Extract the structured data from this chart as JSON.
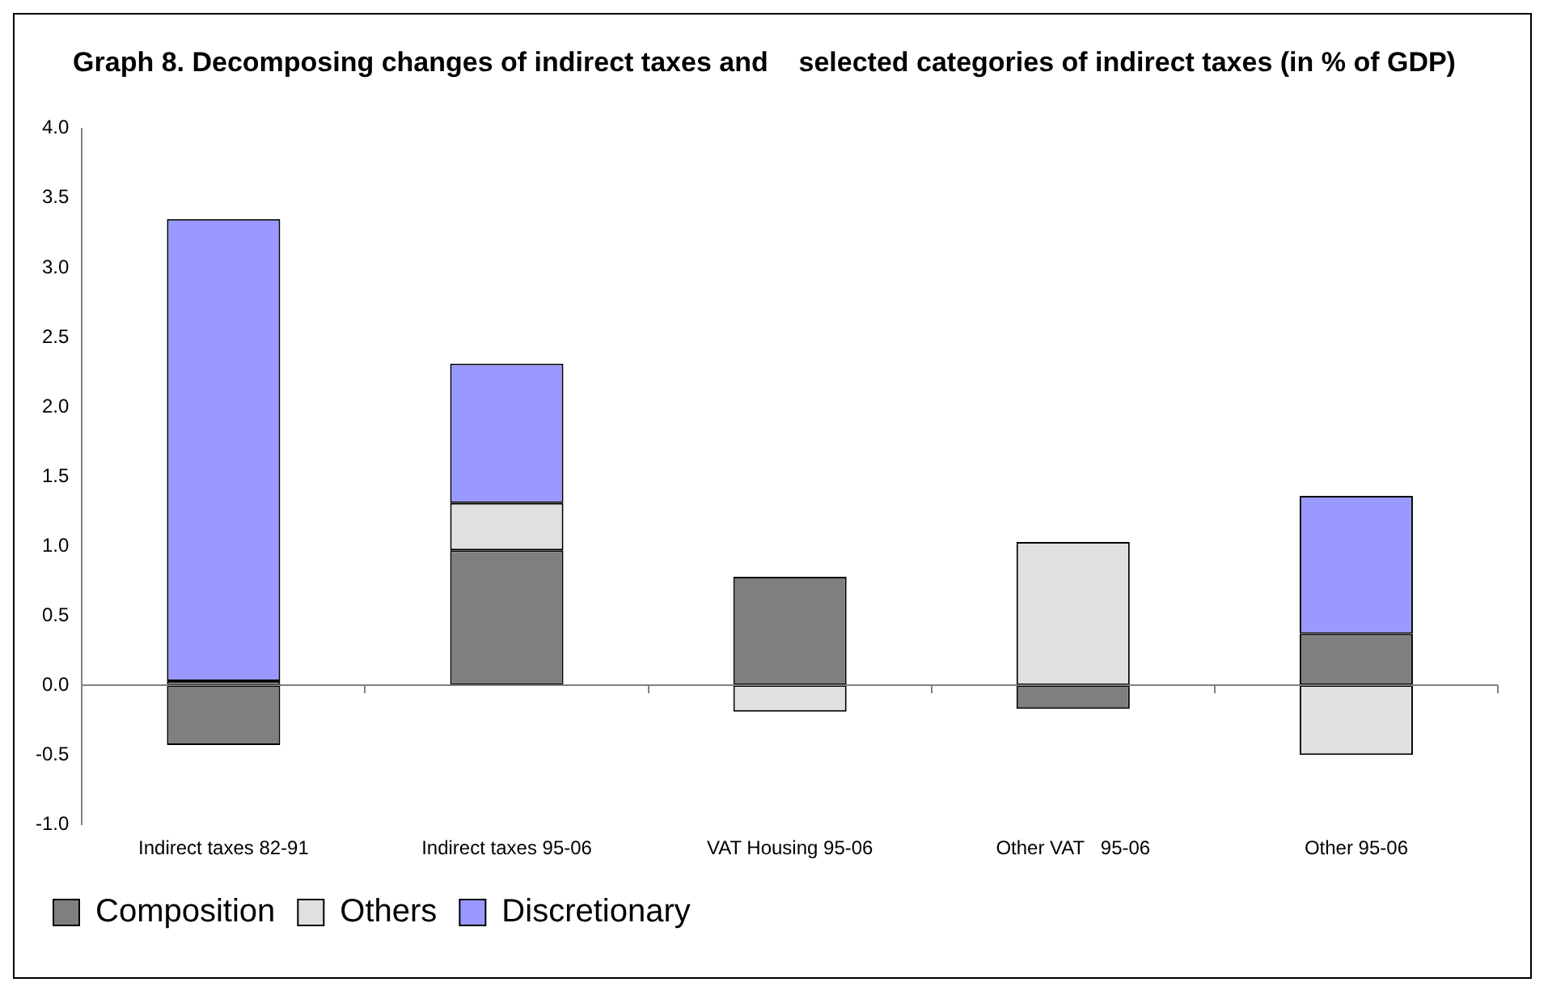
{
  "chart_data": {
    "type": "bar",
    "title": "Graph 8. Decomposing changes of indirect taxes and    selected categories of indirect taxes (in % of GDP)",
    "categories": [
      "Indirect taxes 82-91",
      "Indirect taxes 95-06",
      "VAT Housing 95-06",
      "Other VAT   95-06",
      "Other 95-06"
    ],
    "series": [
      {
        "name": "Composition",
        "color": "#7f7f7f",
        "values": [
          -0.43,
          0.97,
          0.78,
          -0.17,
          0.37
        ]
      },
      {
        "name": "Others",
        "color": "#e0e0e0",
        "values": [
          0.03,
          0.34,
          -0.19,
          1.03,
          -0.5
        ]
      },
      {
        "name": "Discretionary",
        "color": "#9999ff",
        "values": [
          3.32,
          1.0,
          null,
          null,
          0.99
        ]
      }
    ],
    "stacked": true,
    "ylim": [
      -1.0,
      4.0
    ],
    "yticks": [
      {
        "value": -1,
        "label": "-1.0"
      },
      {
        "value": -0.5,
        "label": "-0.5"
      },
      {
        "value": 0,
        "label": "0.0"
      },
      {
        "value": 0.5,
        "label": "0.5"
      },
      {
        "value": 1,
        "label": "1.0"
      },
      {
        "value": 1.5,
        "label": "1.5"
      },
      {
        "value": 2,
        "label": "2.0"
      },
      {
        "value": 2.5,
        "label": "2.5"
      },
      {
        "value": 3,
        "label": "3.0"
      },
      {
        "value": 3.5,
        "label": "3.5"
      },
      {
        "value": 4,
        "label": "4.0"
      }
    ],
    "grid": false,
    "legend": "bottom",
    "ref_lines": [
      {
        "axis": "y",
        "value": 0,
        "color": "#808080"
      }
    ]
  }
}
